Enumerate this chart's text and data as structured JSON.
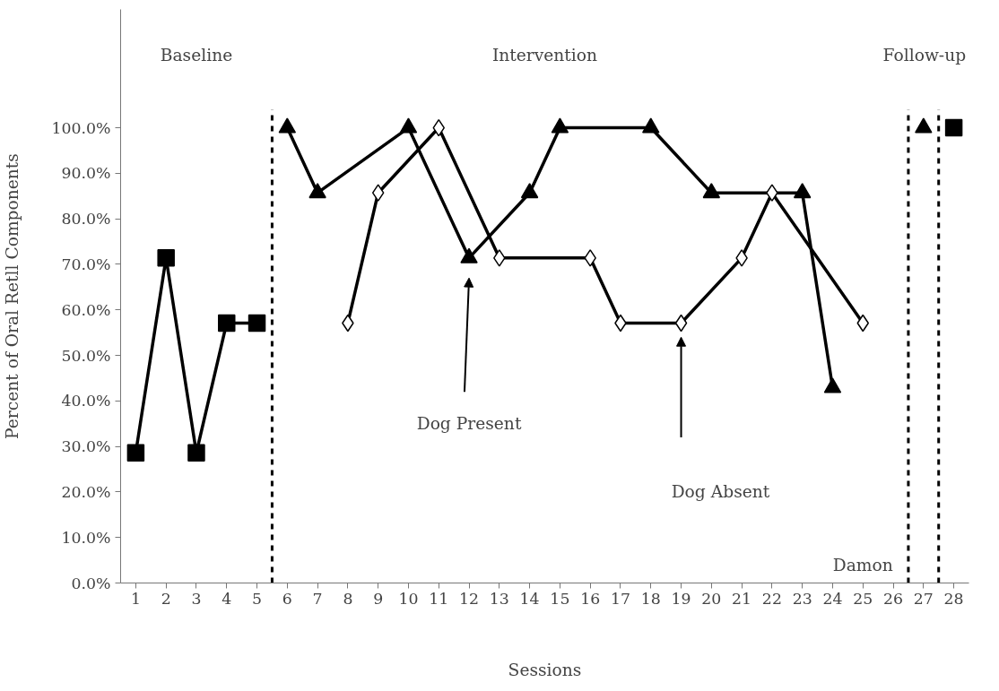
{
  "chart_data": {
    "type": "line",
    "xlabel": "Sessions",
    "ylabel": "Percent of Oral Retll Components",
    "xlim": [
      0.5,
      28.5
    ],
    "xticks": [
      1,
      2,
      3,
      4,
      5,
      6,
      7,
      8,
      9,
      10,
      11,
      12,
      13,
      14,
      15,
      16,
      17,
      18,
      19,
      20,
      21,
      22,
      23,
      24,
      25,
      26,
      27,
      28
    ],
    "ylim": [
      0,
      126
    ],
    "yticks": [
      {
        "value": 0,
        "label": "0.0%"
      },
      {
        "value": 10,
        "label": "10.0%"
      },
      {
        "value": 20,
        "label": "20.0%"
      },
      {
        "value": 30,
        "label": "30.0%"
      },
      {
        "value": 40,
        "label": "40.0%"
      },
      {
        "value": 50,
        "label": "50.0%"
      },
      {
        "value": 60,
        "label": "60.0%"
      },
      {
        "value": 70,
        "label": "70.0%"
      },
      {
        "value": 80,
        "label": "80.0%"
      },
      {
        "value": 90,
        "label": "90.0%"
      },
      {
        "value": 100,
        "label": "100.0%"
      }
    ],
    "grid": false,
    "line_style": "solid",
    "series": [
      {
        "color": "#000000",
        "marker": "square",
        "x": [
          1,
          2,
          3,
          4,
          5,
          null,
          28
        ],
        "values": [
          28.6,
          71.4,
          28.6,
          57.1,
          57.1,
          null,
          100
        ]
      },
      {
        "color": "#000000",
        "marker": "triangle",
        "x": [
          6,
          7,
          10,
          12,
          14,
          15,
          18,
          20,
          23,
          24,
          null,
          27
        ],
        "values": [
          100,
          85.7,
          100,
          71.4,
          85.7,
          100,
          100,
          85.7,
          85.7,
          42.9,
          null,
          100
        ]
      },
      {
        "color": "#000000",
        "marker": "diamond",
        "x": [
          8,
          9,
          11,
          13,
          16,
          17,
          19,
          21,
          22,
          25
        ],
        "values": [
          57.1,
          85.7,
          100,
          71.4,
          71.4,
          57.1,
          57.1,
          71.4,
          85.7,
          57.1
        ]
      }
    ],
    "ref_lines": [
      {
        "axis": "x",
        "value": 5.5,
        "color": "#000000",
        "line_style": "dashed"
      },
      {
        "axis": "x",
        "value": 26.5,
        "color": "#000000",
        "line_style": "dashed"
      },
      {
        "axis": "x",
        "value": 27.5,
        "color": "#000000",
        "line_style": "dashed"
      }
    ],
    "annotations": [
      "Baseline",
      "Intervention",
      "Follow-up",
      "Dog Present",
      "Dog Absent",
      "Damon"
    ]
  }
}
